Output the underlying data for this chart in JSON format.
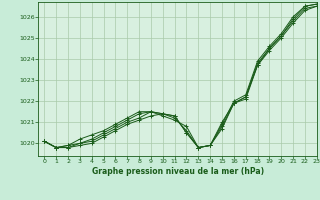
{
  "title": "Graphe pression niveau de la mer (hPa)",
  "background_color": "#c8ecd8",
  "grid_color": "#aacaaa",
  "plot_bg": "#d8f0e0",
  "line_color": "#1a5c1a",
  "xlim": [
    -0.5,
    23
  ],
  "ylim": [
    1019.4,
    1026.7
  ],
  "yticks": [
    1020,
    1021,
    1022,
    1023,
    1024,
    1025,
    1026
  ],
  "xticks": [
    0,
    1,
    2,
    3,
    4,
    5,
    6,
    7,
    8,
    9,
    10,
    11,
    12,
    13,
    14,
    15,
    16,
    17,
    18,
    19,
    20,
    21,
    22,
    23
  ],
  "series": [
    [
      1020.1,
      1019.8,
      1019.8,
      1019.9,
      1020.0,
      1020.3,
      1020.6,
      1020.9,
      1021.1,
      1021.3,
      1021.4,
      1021.3,
      1020.5,
      1019.8,
      1019.9,
      1020.7,
      1021.9,
      1022.1,
      1023.7,
      1024.4,
      1025.0,
      1025.7,
      1026.3,
      1026.5
    ],
    [
      1020.1,
      1019.8,
      1019.8,
      1020.0,
      1020.1,
      1020.4,
      1020.7,
      1021.0,
      1021.2,
      1021.5,
      1021.3,
      1021.1,
      1020.8,
      1019.8,
      1019.9,
      1020.8,
      1021.9,
      1022.2,
      1023.8,
      1024.5,
      1025.1,
      1025.8,
      1026.4,
      1026.5
    ],
    [
      1020.1,
      1019.8,
      1019.9,
      1020.0,
      1020.2,
      1020.5,
      1020.8,
      1021.1,
      1021.4,
      1021.5,
      1021.4,
      1021.2,
      1020.6,
      1019.8,
      1019.9,
      1020.9,
      1022.0,
      1022.3,
      1023.9,
      1024.6,
      1025.2,
      1026.0,
      1026.5,
      1026.6
    ],
    [
      1020.1,
      1019.8,
      1019.9,
      1020.2,
      1020.4,
      1020.6,
      1020.9,
      1021.2,
      1021.5,
      1021.5,
      1021.4,
      1021.3,
      1020.5,
      1019.8,
      1019.9,
      1021.0,
      1021.9,
      1022.2,
      1023.7,
      1024.5,
      1025.1,
      1025.9,
      1026.5,
      1026.6
    ]
  ]
}
